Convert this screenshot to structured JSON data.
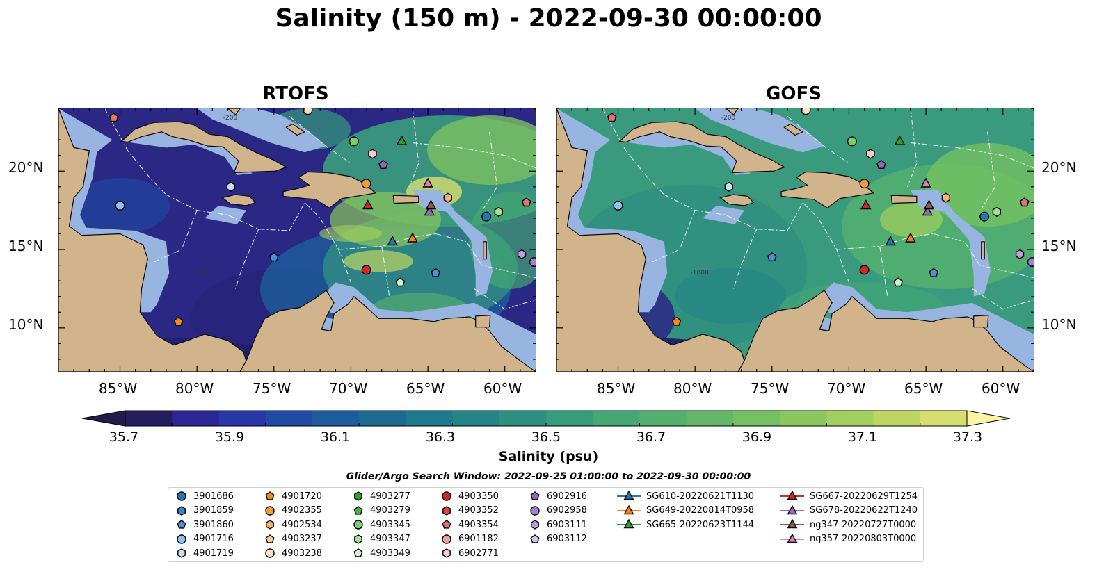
{
  "title": "Salinity (150 m) - 2022-09-30 00:00:00",
  "panels": [
    {
      "title": "RTOFS",
      "style": "rtofs"
    },
    {
      "title": "GOFS",
      "style": "gofs"
    }
  ],
  "map": {
    "lon_range": [
      -89,
      -58
    ],
    "lat_range": [
      7.2,
      24
    ],
    "lon_ticks": [
      "85°W",
      "80°W",
      "75°W",
      "70°W",
      "65°W",
      "60°W"
    ],
    "lat_ticks": [
      "20°N",
      "15°N",
      "10°N"
    ],
    "land_color": "#d2b48c",
    "shelf_color": "#98b4e0",
    "contour_labels": [
      "-200",
      "-1000"
    ]
  },
  "colorbar": {
    "label": "Salinity (psu)",
    "min": 35.6,
    "max": 37.4,
    "extend": "both",
    "ticks": [
      "35.7",
      "35.9",
      "36.1",
      "36.3",
      "36.5",
      "36.7",
      "36.9",
      "37.1",
      "37.3"
    ],
    "colors": [
      "#261d5d",
      "#292695",
      "#2836a8",
      "#1f4ba4",
      "#1c5c9c",
      "#1c6b93",
      "#1f798d",
      "#248586",
      "#2b9181",
      "#369d7c",
      "#45a874",
      "#53b06e",
      "#62b868",
      "#74c162",
      "#8ac85d",
      "#a3cf5e",
      "#bdd663",
      "#d6df6e"
    ],
    "end_colors": [
      "#231b4b",
      "#fdf3a3"
    ]
  },
  "search_window": "Glider/Argo Search Window: 2022-09-25 01:00:00 to 2022-09-30 00:00:00",
  "legend": {
    "items": [
      {
        "label": "3901686",
        "marker": "circle",
        "color": "#1f77b4"
      },
      {
        "label": "3901859",
        "marker": "hexagon",
        "color": "#3a86c8"
      },
      {
        "label": "3901860",
        "marker": "pentagon",
        "color": "#4a93d2"
      },
      {
        "label": "4901716",
        "marker": "circle",
        "color": "#8ec2ea"
      },
      {
        "label": "4901719",
        "marker": "hexagon",
        "color": "#c6e0f5"
      },
      {
        "label": "4901720",
        "marker": "pentagon",
        "color": "#f28a18"
      },
      {
        "label": "4902355",
        "marker": "circle",
        "color": "#f59a3c"
      },
      {
        "label": "4902534",
        "marker": "hexagon",
        "color": "#f7b46e"
      },
      {
        "label": "4903237",
        "marker": "pentagon",
        "color": "#f9c99a"
      },
      {
        "label": "4903238",
        "marker": "circle",
        "color": "#fde0c0"
      },
      {
        "label": "4903277",
        "marker": "hexagon",
        "color": "#2ca02c"
      },
      {
        "label": "4903279",
        "marker": "pentagon",
        "color": "#46b446"
      },
      {
        "label": "4903345",
        "marker": "circle",
        "color": "#7ccf6c"
      },
      {
        "label": "4903347",
        "marker": "hexagon",
        "color": "#a4df96"
      },
      {
        "label": "4903349",
        "marker": "pentagon",
        "color": "#d0f2c6"
      },
      {
        "label": "4903350",
        "marker": "circle",
        "color": "#d62728"
      },
      {
        "label": "4903352",
        "marker": "hexagon",
        "color": "#e04545"
      },
      {
        "label": "4903354",
        "marker": "pentagon",
        "color": "#ea6f6f"
      },
      {
        "label": "6901182",
        "marker": "circle",
        "color": "#f5a0a0"
      },
      {
        "label": "6902771",
        "marker": "hexagon",
        "color": "#fbc9c9"
      },
      {
        "label": "6902916",
        "marker": "pentagon",
        "color": "#9467bd"
      },
      {
        "label": "6902958",
        "marker": "circle",
        "color": "#a57fd0"
      },
      {
        "label": "6903111",
        "marker": "hexagon",
        "color": "#bd9ddf"
      },
      {
        "label": "6903112",
        "marker": "pentagon",
        "color": "#d7c3ef"
      },
      {
        "label": "SG610-20220621T1130",
        "marker": "triangle",
        "color": "#1f77b4"
      },
      {
        "label": "SG649-20220814T0958",
        "marker": "triangle",
        "color": "#ff7f0e"
      },
      {
        "label": "SG665-20220623T1144",
        "marker": "triangle",
        "color": "#2ca02c"
      },
      {
        "label": "SG667-20220629T1254",
        "marker": "triangle",
        "color": "#d62728"
      },
      {
        "label": "SG678-20220622T1240",
        "marker": "triangle",
        "color": "#9467bd"
      },
      {
        "label": "ng347-20220727T0000",
        "marker": "triangle",
        "color": "#8c564b"
      },
      {
        "label": "ng357-20220803T0000",
        "marker": "triangle",
        "color": "#e377c2"
      }
    ]
  },
  "observations": [
    {
      "id": "3901686",
      "marker": "circle",
      "color": "#1f77b4",
      "lon": -61.2,
      "lat": 17.1
    },
    {
      "id": "3901860",
      "marker": "pentagon",
      "color": "#4a93d2",
      "lon": -64.5,
      "lat": 13.5
    },
    {
      "id": "3901860",
      "marker": "pentagon",
      "color": "#4a93d2",
      "lon": -75.0,
      "lat": 14.5
    },
    {
      "id": "4901716",
      "marker": "circle",
      "color": "#8ec2ea",
      "lon": -85.0,
      "lat": 17.8
    },
    {
      "id": "4901719",
      "marker": "hexagon",
      "color": "#c6e0f5",
      "lon": -77.8,
      "lat": 19.0
    },
    {
      "id": "4901720",
      "marker": "pentagon",
      "color": "#f28a18",
      "lon": -81.2,
      "lat": 10.4
    },
    {
      "id": "4902355",
      "marker": "circle",
      "color": "#f59a3c",
      "lon": -69.0,
      "lat": 19.2
    },
    {
      "id": "4902534",
      "marker": "hexagon",
      "color": "#f7b46e",
      "lon": -63.7,
      "lat": 18.3
    },
    {
      "id": "4903238",
      "marker": "circle",
      "color": "#fde0c0",
      "lon": -72.8,
      "lat": 23.9
    },
    {
      "id": "4903345",
      "marker": "circle",
      "color": "#7ccf6c",
      "lon": -69.8,
      "lat": 21.9
    },
    {
      "id": "4903347",
      "marker": "hexagon",
      "color": "#a4df96",
      "lon": -60.4,
      "lat": 17.4
    },
    {
      "id": "4903349",
      "marker": "pentagon",
      "color": "#d0f2c6",
      "lon": -66.8,
      "lat": 12.9
    },
    {
      "id": "4903350",
      "marker": "circle",
      "color": "#d62728",
      "lon": -69.0,
      "lat": 13.7
    },
    {
      "id": "4903354",
      "marker": "pentagon",
      "color": "#ea6f6f",
      "lon": -58.6,
      "lat": 18.0
    },
    {
      "id": "4903354",
      "marker": "pentagon",
      "color": "#ea6f6f",
      "lon": -85.4,
      "lat": 23.4
    },
    {
      "id": "6902771",
      "marker": "hexagon",
      "color": "#fbc9c9",
      "lon": -68.6,
      "lat": 21.1
    },
    {
      "id": "6902916",
      "marker": "pentagon",
      "color": "#9467bd",
      "lon": -67.9,
      "lat": 20.4
    },
    {
      "id": "6902958",
      "marker": "circle",
      "color": "#a57fd0",
      "lon": -58.1,
      "lat": 14.2
    },
    {
      "id": "6903111",
      "marker": "hexagon",
      "color": "#bd9ddf",
      "lon": -58.9,
      "lat": 14.7
    },
    {
      "id": "SG610-20220621T1130",
      "marker": "triangle",
      "color": "#1f77b4",
      "lon": -67.3,
      "lat": 15.5
    },
    {
      "id": "SG649-20220814T0958",
      "marker": "triangle",
      "color": "#ff7f0e",
      "lon": -66.0,
      "lat": 15.7
    },
    {
      "id": "SG665-20220623T1144",
      "marker": "triangle",
      "color": "#2ca02c",
      "lon": -66.7,
      "lat": 21.9
    },
    {
      "id": "SG667-20220629T1254",
      "marker": "triangle",
      "color": "#d62728",
      "lon": -68.9,
      "lat": 17.8
    },
    {
      "id": "SG678-20220622T1240",
      "marker": "triangle",
      "color": "#9467bd",
      "lon": -64.9,
      "lat": 17.4
    },
    {
      "id": "ng347-20220727T0000",
      "marker": "triangle",
      "color": "#8c564b",
      "lon": -64.8,
      "lat": 17.8
    },
    {
      "id": "ng357-20220803T0000",
      "marker": "triangle",
      "color": "#e377c2",
      "lon": -65.0,
      "lat": 19.2
    }
  ]
}
